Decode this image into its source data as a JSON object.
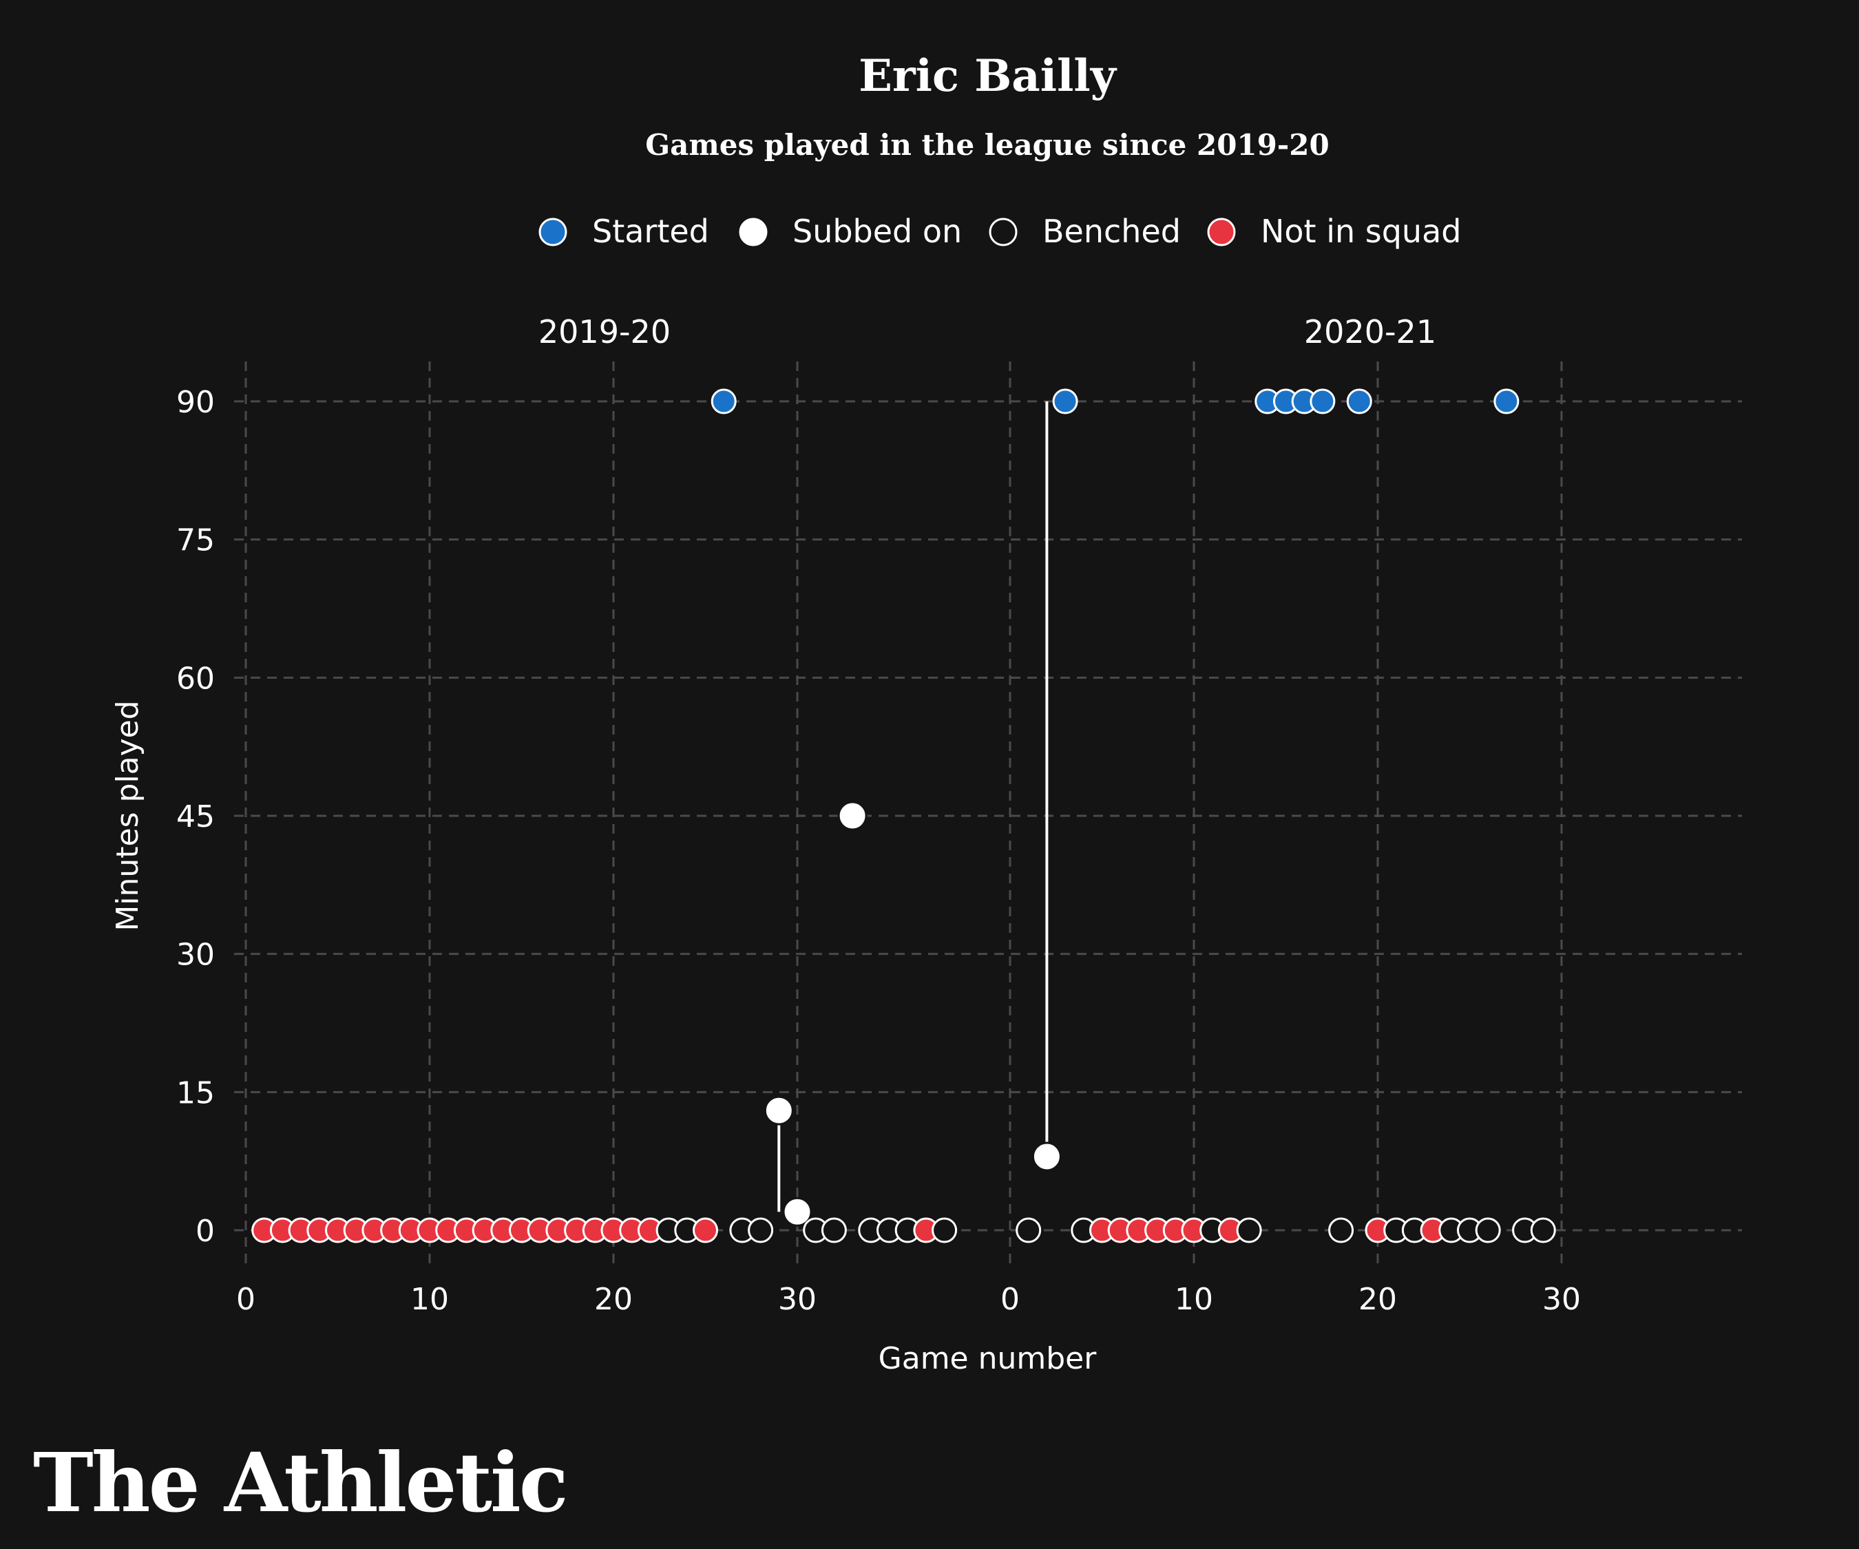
{
  "brand": "The Athletic",
  "colors": {
    "background": "#141414",
    "started": "#1a73c8",
    "subbed_on": "#ffffff",
    "benched": "#141414",
    "not_in_squad": "#e8343f",
    "grid": "#4a4a4a",
    "text": "#ffffff"
  },
  "chart_data": {
    "type": "scatter",
    "title": "Eric Bailly",
    "subtitle": "Games played in the league since 2019-20",
    "ylabel": "Minutes played",
    "xlabel": "Game number",
    "ylim": [
      -5,
      95
    ],
    "yticks": [
      0,
      15,
      30,
      45,
      60,
      75,
      90
    ],
    "grid": true,
    "legend_position": "top-center",
    "legend": [
      {
        "key": "started",
        "label": "Started"
      },
      {
        "key": "subbed_on",
        "label": "Subbed on"
      },
      {
        "key": "benched",
        "label": "Benched"
      },
      {
        "key": "not_in_squad",
        "label": "Not in squad"
      }
    ],
    "panels": [
      {
        "season": "2019-20",
        "xlim": [
          0,
          38
        ],
        "xticks": [
          0,
          10,
          20,
          30
        ],
        "connectors": [
          [
            29,
            13,
            29,
            2
          ]
        ],
        "games": [
          {
            "x": 1,
            "y": 0,
            "status": "not_in_squad"
          },
          {
            "x": 2,
            "y": 0,
            "status": "not_in_squad"
          },
          {
            "x": 3,
            "y": 0,
            "status": "not_in_squad"
          },
          {
            "x": 4,
            "y": 0,
            "status": "not_in_squad"
          },
          {
            "x": 5,
            "y": 0,
            "status": "not_in_squad"
          },
          {
            "x": 6,
            "y": 0,
            "status": "not_in_squad"
          },
          {
            "x": 7,
            "y": 0,
            "status": "not_in_squad"
          },
          {
            "x": 8,
            "y": 0,
            "status": "not_in_squad"
          },
          {
            "x": 9,
            "y": 0,
            "status": "not_in_squad"
          },
          {
            "x": 10,
            "y": 0,
            "status": "not_in_squad"
          },
          {
            "x": 11,
            "y": 0,
            "status": "not_in_squad"
          },
          {
            "x": 12,
            "y": 0,
            "status": "not_in_squad"
          },
          {
            "x": 13,
            "y": 0,
            "status": "not_in_squad"
          },
          {
            "x": 14,
            "y": 0,
            "status": "not_in_squad"
          },
          {
            "x": 15,
            "y": 0,
            "status": "not_in_squad"
          },
          {
            "x": 16,
            "y": 0,
            "status": "not_in_squad"
          },
          {
            "x": 17,
            "y": 0,
            "status": "not_in_squad"
          },
          {
            "x": 18,
            "y": 0,
            "status": "not_in_squad"
          },
          {
            "x": 19,
            "y": 0,
            "status": "not_in_squad"
          },
          {
            "x": 20,
            "y": 0,
            "status": "not_in_squad"
          },
          {
            "x": 21,
            "y": 0,
            "status": "not_in_squad"
          },
          {
            "x": 22,
            "y": 0,
            "status": "not_in_squad"
          },
          {
            "x": 23,
            "y": 0,
            "status": "benched"
          },
          {
            "x": 24,
            "y": 0,
            "status": "benched"
          },
          {
            "x": 25,
            "y": 0,
            "status": "not_in_squad"
          },
          {
            "x": 26,
            "y": 90,
            "status": "started"
          },
          {
            "x": 27,
            "y": 0,
            "status": "benched"
          },
          {
            "x": 28,
            "y": 0,
            "status": "benched"
          },
          {
            "x": 29,
            "y": 13,
            "status": "subbed_on"
          },
          {
            "x": 30,
            "y": 2,
            "status": "subbed_on"
          },
          {
            "x": 31,
            "y": 0,
            "status": "benched"
          },
          {
            "x": 32,
            "y": 0,
            "status": "benched"
          },
          {
            "x": 33,
            "y": 45,
            "status": "subbed_on"
          },
          {
            "x": 34,
            "y": 0,
            "status": "benched"
          },
          {
            "x": 35,
            "y": 0,
            "status": "benched"
          },
          {
            "x": 36,
            "y": 0,
            "status": "benched"
          },
          {
            "x": 37,
            "y": 0,
            "status": "not_in_squad"
          },
          {
            "x": 38,
            "y": 0,
            "status": "benched"
          }
        ]
      },
      {
        "season": "2020-21",
        "xlim": [
          0,
          38
        ],
        "xticks": [
          0,
          10,
          20,
          30
        ],
        "connectors": [
          [
            2,
            90,
            2,
            8
          ]
        ],
        "games": [
          {
            "x": 1,
            "y": 0,
            "status": "benched"
          },
          {
            "x": 2,
            "y": 8,
            "status": "subbed_on"
          },
          {
            "x": 3,
            "y": 90,
            "status": "started"
          },
          {
            "x": 4,
            "y": 0,
            "status": "benched"
          },
          {
            "x": 5,
            "y": 0,
            "status": "not_in_squad"
          },
          {
            "x": 6,
            "y": 0,
            "status": "not_in_squad"
          },
          {
            "x": 7,
            "y": 0,
            "status": "not_in_squad"
          },
          {
            "x": 8,
            "y": 0,
            "status": "not_in_squad"
          },
          {
            "x": 9,
            "y": 0,
            "status": "not_in_squad"
          },
          {
            "x": 10,
            "y": 0,
            "status": "not_in_squad"
          },
          {
            "x": 11,
            "y": 0,
            "status": "benched"
          },
          {
            "x": 12,
            "y": 0,
            "status": "not_in_squad"
          },
          {
            "x": 13,
            "y": 0,
            "status": "benched"
          },
          {
            "x": 14,
            "y": 90,
            "status": "started"
          },
          {
            "x": 15,
            "y": 90,
            "status": "started"
          },
          {
            "x": 16,
            "y": 90,
            "status": "started"
          },
          {
            "x": 17,
            "y": 90,
            "status": "started"
          },
          {
            "x": 18,
            "y": 0,
            "status": "benched"
          },
          {
            "x": 19,
            "y": 90,
            "status": "started"
          },
          {
            "x": 20,
            "y": 0,
            "status": "not_in_squad"
          },
          {
            "x": 21,
            "y": 0,
            "status": "benched"
          },
          {
            "x": 22,
            "y": 0,
            "status": "benched"
          },
          {
            "x": 23,
            "y": 0,
            "status": "not_in_squad"
          },
          {
            "x": 24,
            "y": 0,
            "status": "benched"
          },
          {
            "x": 25,
            "y": 0,
            "status": "benched"
          },
          {
            "x": 26,
            "y": 0,
            "status": "benched"
          },
          {
            "x": 27,
            "y": 90,
            "status": "started"
          },
          {
            "x": 28,
            "y": 0,
            "status": "benched"
          },
          {
            "x": 29,
            "y": 0,
            "status": "benched"
          }
        ]
      }
    ]
  }
}
